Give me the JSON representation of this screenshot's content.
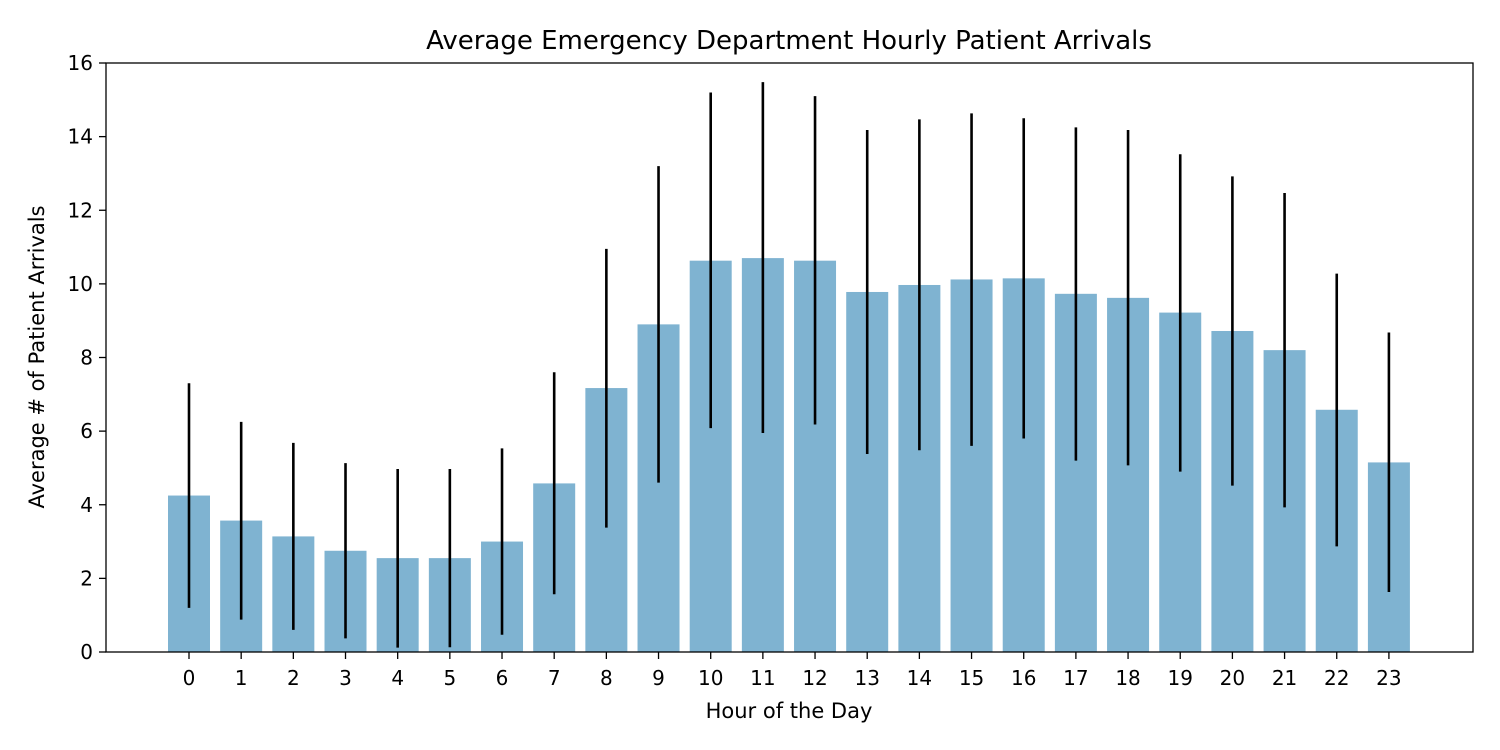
{
  "chart_data": {
    "type": "bar",
    "title": "Average Emergency Department Hourly Patient Arrivals",
    "xlabel": "Hour of the Day",
    "ylabel": "Average # of Patient Arrivals",
    "ylim": [
      0,
      16
    ],
    "yticks": [
      "0",
      "2",
      "4",
      "6",
      "8",
      "10",
      "12",
      "14",
      "16"
    ],
    "categories": [
      "0",
      "1",
      "2",
      "3",
      "4",
      "5",
      "6",
      "7",
      "8",
      "9",
      "10",
      "11",
      "12",
      "13",
      "14",
      "15",
      "16",
      "17",
      "18",
      "19",
      "20",
      "21",
      "22",
      "23"
    ],
    "values": [
      4.25,
      3.57,
      3.14,
      2.75,
      2.55,
      2.55,
      3.0,
      4.58,
      7.17,
      8.9,
      10.63,
      10.7,
      10.63,
      9.78,
      9.97,
      10.12,
      10.15,
      9.73,
      9.62,
      9.22,
      8.72,
      8.2,
      6.58,
      5.15
    ],
    "error_low": [
      1.2,
      0.88,
      0.6,
      0.37,
      0.12,
      0.13,
      0.47,
      1.57,
      3.38,
      4.6,
      6.08,
      5.95,
      6.18,
      5.38,
      5.48,
      5.6,
      5.8,
      5.2,
      5.07,
      4.9,
      4.52,
      3.93,
      2.87,
      1.63
    ],
    "error_high": [
      7.3,
      6.25,
      5.68,
      5.13,
      4.97,
      4.97,
      5.53,
      7.6,
      10.95,
      13.2,
      15.2,
      15.48,
      15.1,
      14.18,
      14.47,
      14.63,
      14.5,
      14.25,
      14.18,
      13.52,
      12.92,
      12.47,
      10.28,
      8.68
    ],
    "bar_color": "#7fb3d1",
    "error_color": "#000000",
    "grid": false,
    "legend": "none"
  }
}
